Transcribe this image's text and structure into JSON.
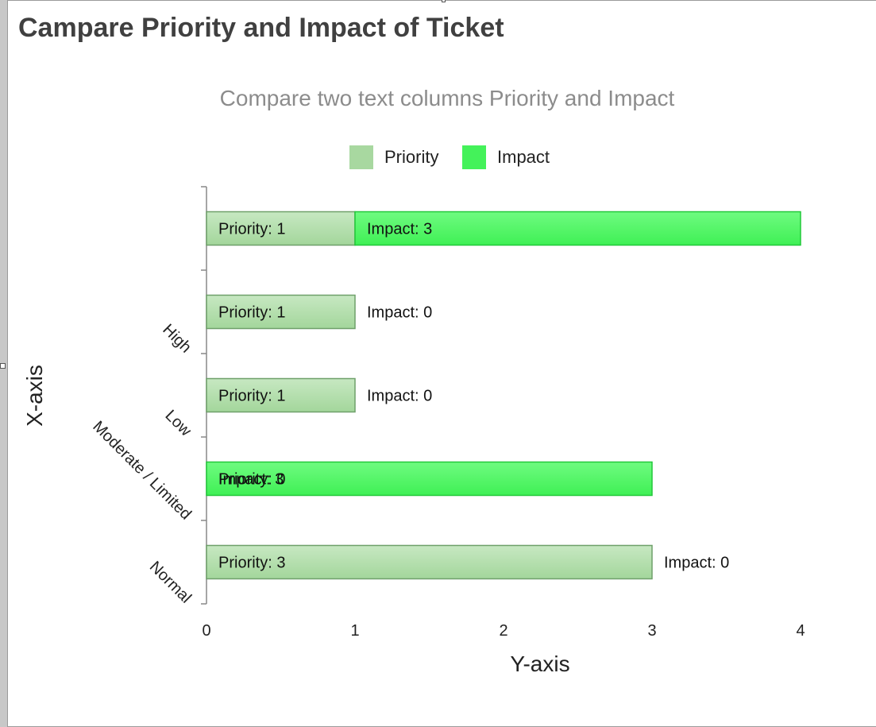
{
  "page": {
    "title": "Campare Priority and Impact of Ticket"
  },
  "chart_data": {
    "type": "bar",
    "orientation": "horizontal",
    "stacked": true,
    "title": "",
    "subtitle": "Compare two text columns Priority and Impact",
    "xlabel": "Y-axis",
    "ylabel": "X-axis",
    "categories": [
      "",
      "High",
      "Low",
      "Moderate / Limited",
      "Normal"
    ],
    "series": [
      {
        "name": "Priority",
        "values": [
          1,
          1,
          1,
          0,
          3
        ],
        "color": "#a8d8a0"
      },
      {
        "name": "Impact",
        "values": [
          3,
          0,
          0,
          3,
          0
        ],
        "color": "#44f25a"
      }
    ],
    "data_labels": [
      [
        "Priority: 1",
        "Priority: 1",
        "Priority: 1",
        "Priority: 0",
        "Priority: 3"
      ],
      [
        "Impact: 3",
        "Impact: 0",
        "Impact: 0",
        "Impact: 3",
        "Impact: 0"
      ]
    ],
    "value_ticks": [
      "0",
      "1",
      "2",
      "3",
      "4"
    ],
    "xlim": [
      0,
      4
    ],
    "legend_position": "top-center",
    "grid": false
  }
}
